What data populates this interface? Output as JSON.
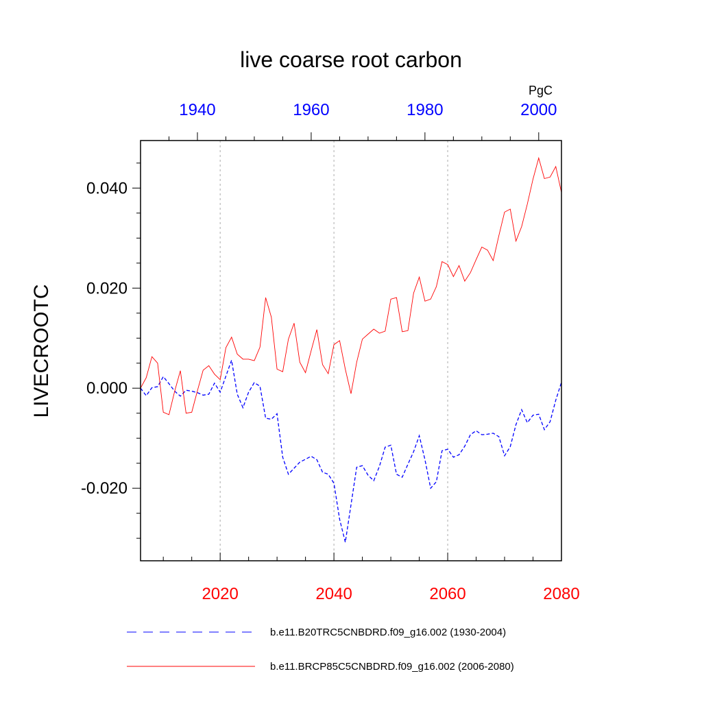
{
  "chart_data": {
    "type": "line",
    "title": "live coarse root carbon",
    "ylabel": "LIVECROOTC",
    "units": "PgC",
    "ylim": [
      -0.0345,
      0.0495
    ],
    "yticks": [
      {
        "value": -0.02,
        "label": "-0.020"
      },
      {
        "value": 0.0,
        "label": "0.000"
      },
      {
        "value": 0.02,
        "label": "0.020"
      },
      {
        "value": 0.04,
        "label": "0.040"
      }
    ],
    "bottom_axis": {
      "color": "#ff0000",
      "range": [
        2006,
        2080
      ],
      "ticks": [
        {
          "value": 2020,
          "label": "2020"
        },
        {
          "value": 2040,
          "label": "2040"
        },
        {
          "value": 2060,
          "label": "2060"
        },
        {
          "value": 2080,
          "label": "2080"
        }
      ]
    },
    "top_axis": {
      "color": "#0000ff",
      "range": [
        1930,
        2004
      ],
      "ticks": [
        {
          "value": 1940,
          "label": "1940"
        },
        {
          "value": 1960,
          "label": "1960"
        },
        {
          "value": 1980,
          "label": "1980"
        },
        {
          "value": 2000,
          "label": "2000"
        }
      ]
    },
    "gridlines_x": [
      2020,
      2040,
      2060
    ],
    "series": [
      {
        "name": "b.e11.B20TRC5CNBDRD.f09_g16.002 (1930-2004)",
        "color": "#0000ff",
        "dash": "dashed",
        "axis": "top",
        "x_start": 1930,
        "values": [
          0.0,
          -0.0015,
          0.0001,
          0.0003,
          0.0023,
          0.0009,
          -0.0006,
          -0.0016,
          -0.0004,
          -0.0006,
          -0.0009,
          -0.0014,
          -0.0012,
          0.001,
          -0.0008,
          0.0024,
          0.0056,
          -0.0012,
          -0.0039,
          -0.0008,
          0.0011,
          0.0004,
          -0.006,
          -0.0062,
          -0.0051,
          -0.0138,
          -0.0172,
          -0.016,
          -0.0148,
          -0.0142,
          -0.0136,
          -0.0143,
          -0.0168,
          -0.0172,
          -0.019,
          -0.0262,
          -0.0308,
          -0.0233,
          -0.0158,
          -0.0155,
          -0.0174,
          -0.0185,
          -0.0156,
          -0.0118,
          -0.0114,
          -0.0172,
          -0.0178,
          -0.0152,
          -0.0127,
          -0.0095,
          -0.0143,
          -0.02,
          -0.0187,
          -0.0125,
          -0.0122,
          -0.0138,
          -0.0133,
          -0.0116,
          -0.0093,
          -0.0085,
          -0.0093,
          -0.0092,
          -0.009,
          -0.0097,
          -0.0135,
          -0.0117,
          -0.0073,
          -0.0043,
          -0.0069,
          -0.0054,
          -0.0052,
          -0.0083,
          -0.0067,
          -0.0024,
          0.0012
        ]
      },
      {
        "name": "b.e11.BRCP85C5CNBDRD.f09_g16.002 (2006-2080)",
        "color": "#ff0000",
        "dash": "solid",
        "axis": "bottom",
        "x_start": 2006,
        "values": [
          0.0,
          0.0021,
          0.0063,
          0.005,
          -0.0048,
          -0.0053,
          -0.0006,
          0.0035,
          -0.005,
          -0.0048,
          -0.0005,
          0.0036,
          0.0045,
          0.0028,
          0.0017,
          0.0081,
          0.0102,
          0.0068,
          0.0058,
          0.0058,
          0.0055,
          0.0082,
          0.0181,
          0.0142,
          0.0038,
          0.0033,
          0.0098,
          0.013,
          0.0052,
          0.0031,
          0.0075,
          0.0117,
          0.0047,
          0.0029,
          0.0087,
          0.0095,
          0.0038,
          -0.0011,
          0.0052,
          0.0098,
          0.0108,
          0.0118,
          0.011,
          0.0114,
          0.0178,
          0.0181,
          0.0113,
          0.0115,
          0.019,
          0.0222,
          0.0174,
          0.0178,
          0.0203,
          0.0253,
          0.0247,
          0.0223,
          0.0245,
          0.0214,
          0.0231,
          0.0257,
          0.0282,
          0.0276,
          0.0255,
          0.0305,
          0.0352,
          0.0358,
          0.0294,
          0.0323,
          0.0368,
          0.0418,
          0.046,
          0.0419,
          0.0422,
          0.0443,
          0.0391
        ]
      }
    ],
    "legend": [
      {
        "label": "b.e11.B20TRC5CNBDRD.f09_g16.002 (1930-2004)",
        "color": "#0000ff",
        "dash": "dashed"
      },
      {
        "label": "b.e11.BRCP85C5CNBDRD.f09_g16.002 (2006-2080)",
        "color": "#ff0000",
        "dash": "solid"
      }
    ]
  }
}
